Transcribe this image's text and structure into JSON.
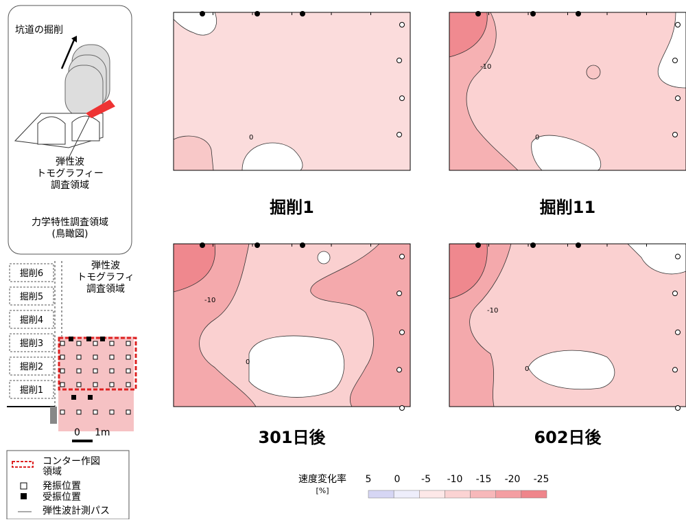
{
  "schematic": {
    "excavation_label": "坑道の掘削",
    "tomography_label": [
      "弾性波",
      "トモグラフィー",
      "調査領域"
    ],
    "region_label": [
      "力学特性調査領域",
      "(鳥瞰図)"
    ]
  },
  "plan": {
    "tomography_label": [
      "弾性波",
      "トモグラフィ",
      "調査領域"
    ],
    "stages": [
      "掘削6",
      "掘削5",
      "掘削4",
      "掘削3",
      "掘削2",
      "掘削1"
    ],
    "scale": [
      "0",
      "1m"
    ]
  },
  "legend": {
    "items": [
      [
        "コンター作図",
        "領域"
      ],
      [
        "発振位置"
      ],
      [
        "受振位置"
      ],
      [
        "弾性波計測パス"
      ]
    ]
  },
  "panels": [
    {
      "title": "掘削1",
      "contour_labels": [
        "0"
      ]
    },
    {
      "title": "掘削11",
      "contour_labels": [
        "-10",
        "0"
      ]
    },
    {
      "title": "301日後",
      "contour_labels": [
        "-10",
        "0"
      ]
    },
    {
      "title": "602日後",
      "contour_labels": [
        "-10",
        "0"
      ]
    }
  ],
  "colorbar": {
    "title": "速度変化率",
    "unit": "[%]",
    "ticks": [
      5,
      0,
      -5,
      -10,
      -15,
      -20,
      -25
    ]
  }
}
